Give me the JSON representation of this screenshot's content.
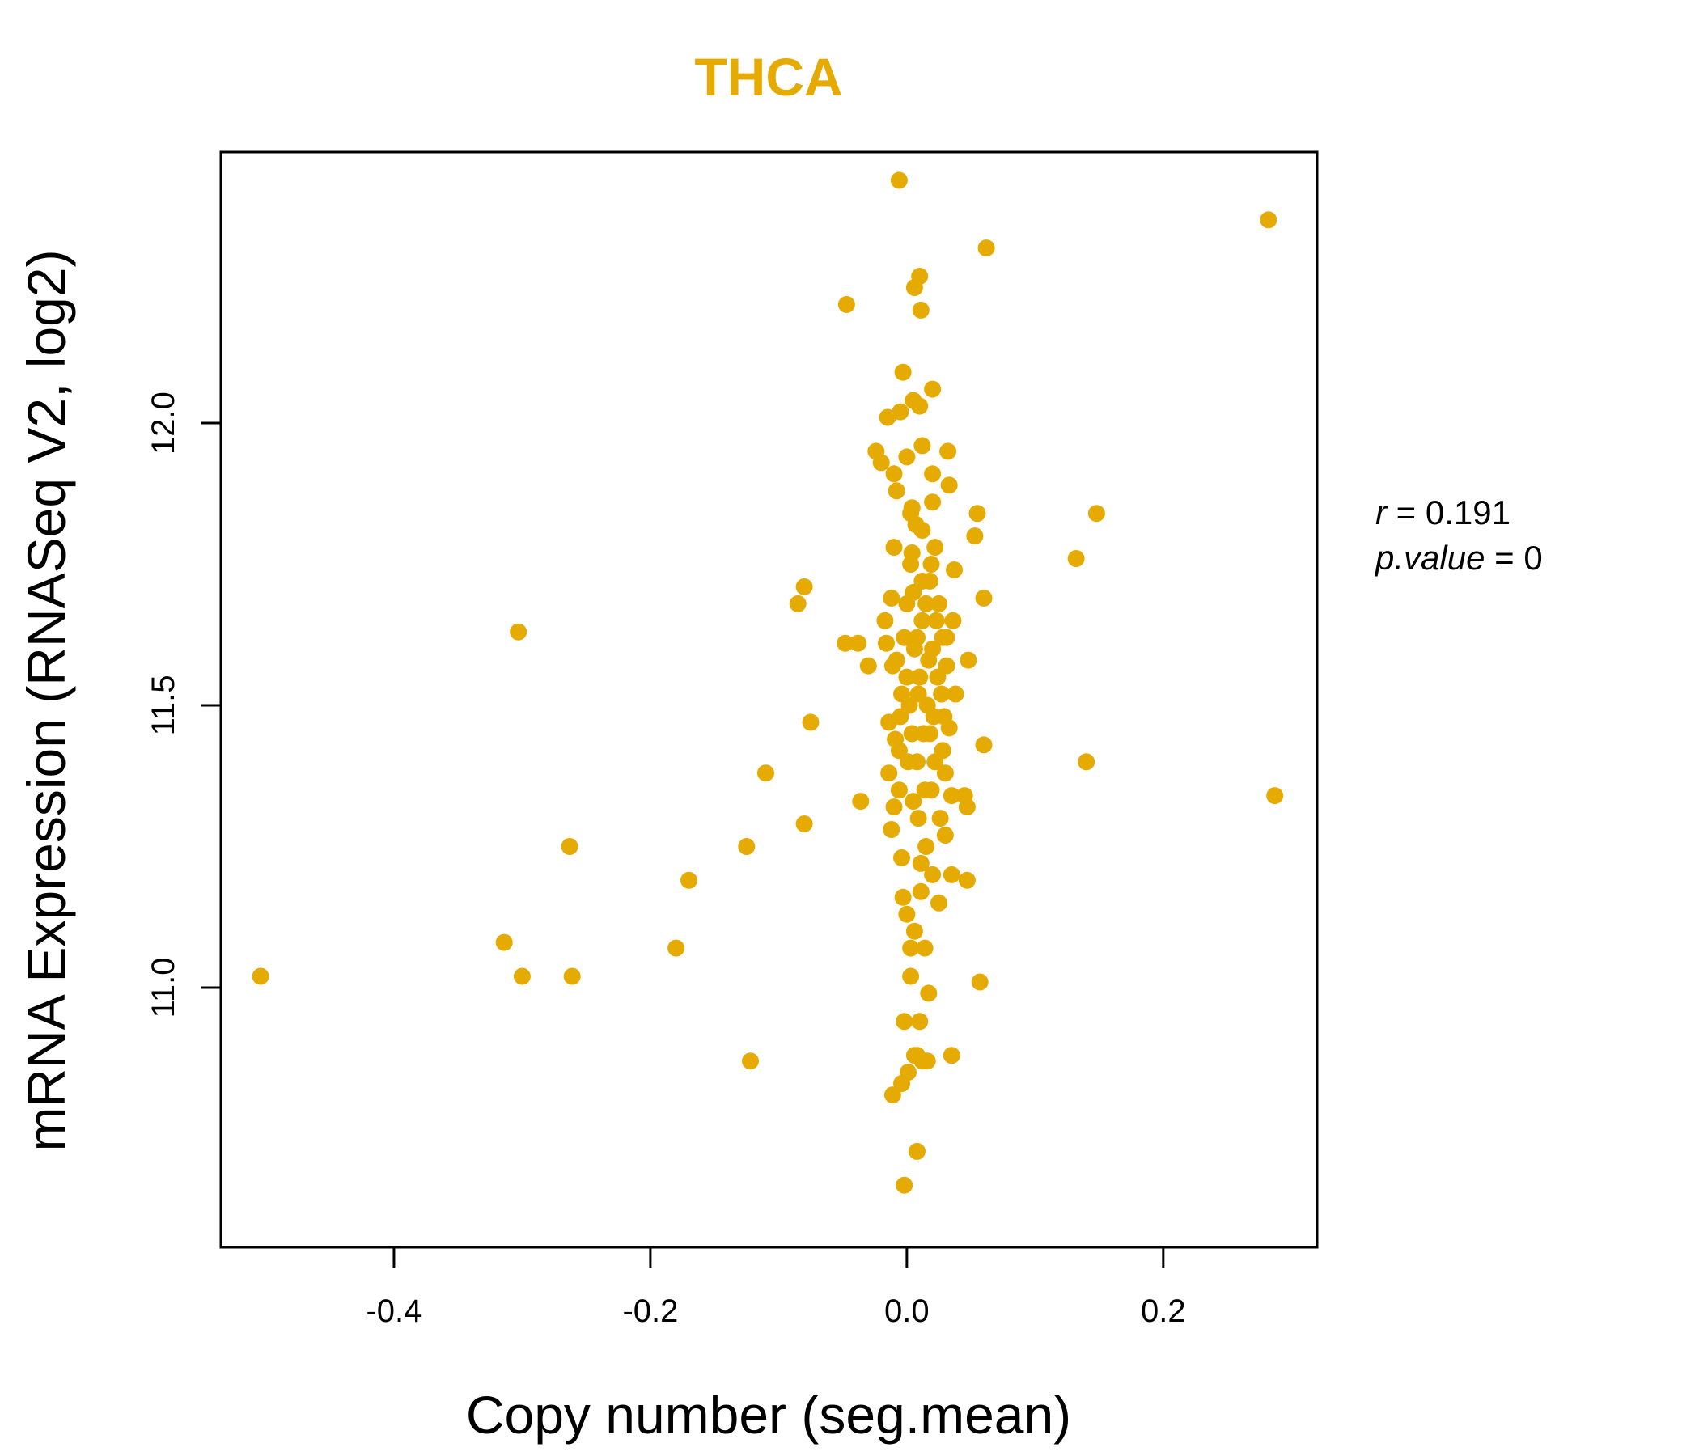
{
  "chart_data": {
    "type": "scatter",
    "title": "THCA",
    "xlabel": "Copy number (seg.mean)",
    "ylabel": "mRNA Expression (RNASeq V2, log2)",
    "xlim": [
      -0.535,
      0.32
    ],
    "ylim": [
      10.54,
      12.48
    ],
    "xticks": [
      -0.4,
      -0.2,
      0.0,
      0.2
    ],
    "xtick_labels": [
      "-0.4",
      "-0.2",
      "0.0",
      "0.2"
    ],
    "yticks": [
      11.0,
      11.5,
      12.0
    ],
    "ytick_labels": [
      "11.0",
      "11.5",
      "12.0"
    ],
    "stats": {
      "r_label": "r",
      "r_value": "0.191",
      "p_label": "p.value",
      "p_value": "0"
    },
    "colors": {
      "accent": "#E6AB02",
      "axis": "#000000"
    },
    "points": [
      [
        -0.504,
        11.02
      ],
      [
        -0.303,
        11.63
      ],
      [
        -0.314,
        11.08
      ],
      [
        -0.3,
        11.02
      ],
      [
        -0.263,
        11.25
      ],
      [
        -0.261,
        11.02
      ],
      [
        -0.18,
        11.07
      ],
      [
        -0.17,
        11.19
      ],
      [
        -0.125,
        11.25
      ],
      [
        -0.122,
        10.87
      ],
      [
        -0.11,
        11.38
      ],
      [
        -0.085,
        11.68
      ],
      [
        -0.08,
        11.71
      ],
      [
        -0.075,
        11.47
      ],
      [
        -0.08,
        11.29
      ],
      [
        -0.048,
        11.61
      ],
      [
        -0.038,
        11.61
      ],
      [
        -0.03,
        11.57
      ],
      [
        -0.036,
        11.33
      ],
      [
        -0.047,
        12.21
      ],
      [
        -0.006,
        12.43
      ],
      [
        0.062,
        12.31
      ],
      [
        0.282,
        12.36
      ],
      [
        0.287,
        11.34
      ],
      [
        0.14,
        11.4
      ],
      [
        0.132,
        11.76
      ],
      [
        0.148,
        11.84
      ],
      [
        0.06,
        11.69
      ],
      [
        0.06,
        11.43
      ],
      [
        0.057,
        11.01
      ],
      [
        0.055,
        11.84
      ],
      [
        0.053,
        11.8
      ],
      [
        0.048,
        11.58
      ],
      [
        0.047,
        11.32
      ],
      [
        0.047,
        11.19
      ],
      [
        0.045,
        11.34
      ],
      [
        0.038,
        11.52
      ],
      [
        0.037,
        11.74
      ],
      [
        0.036,
        11.65
      ],
      [
        0.035,
        11.34
      ],
      [
        0.035,
        11.2
      ],
      [
        0.035,
        10.88
      ],
      [
        0.033,
        11.89
      ],
      [
        0.032,
        11.95
      ],
      [
        0.033,
        11.46
      ],
      [
        0.031,
        11.57
      ],
      [
        0.02,
        12.06
      ],
      [
        0.02,
        11.86
      ],
      [
        0.02,
        11.91
      ],
      [
        0.012,
        11.96
      ],
      [
        0.01,
        12.03
      ],
      [
        0.012,
        11.81
      ],
      [
        0.01,
        12.26
      ],
      [
        0.006,
        12.24
      ],
      [
        0.011,
        12.2
      ],
      [
        -0.003,
        12.09
      ],
      [
        -0.005,
        12.02
      ],
      [
        0.005,
        12.04
      ],
      [
        -0.015,
        12.01
      ],
      [
        -0.02,
        11.93
      ],
      [
        -0.024,
        11.95
      ],
      [
        -0.01,
        11.91
      ],
      [
        -0.008,
        11.88
      ],
      [
        0.003,
        11.84
      ],
      [
        0.0,
        11.94
      ],
      [
        0.012,
        11.72
      ],
      [
        0.004,
        11.77
      ],
      [
        -0.01,
        11.78
      ],
      [
        -0.012,
        11.69
      ],
      [
        -0.017,
        11.65
      ],
      [
        -0.016,
        11.61
      ],
      [
        -0.011,
        11.57
      ],
      [
        -0.014,
        11.47
      ],
      [
        -0.014,
        11.38
      ],
      [
        -0.01,
        11.32
      ],
      [
        -0.012,
        11.28
      ],
      [
        -0.009,
        11.44
      ],
      [
        -0.006,
        11.35
      ],
      [
        -0.004,
        11.23
      ],
      [
        -0.003,
        11.16
      ],
      [
        0.0,
        11.13
      ],
      [
        0.003,
        11.07
      ],
      [
        0.003,
        11.02
      ],
      [
        0.006,
        11.1
      ],
      [
        0.011,
        11.17
      ],
      [
        0.014,
        11.07
      ],
      [
        0.017,
        10.99
      ],
      [
        -0.002,
        10.94
      ],
      [
        0.01,
        10.94
      ],
      [
        0.008,
        10.88
      ],
      [
        0.006,
        10.88
      ],
      [
        0.012,
        10.87
      ],
      [
        0.016,
        10.87
      ],
      [
        0.001,
        10.85
      ],
      [
        -0.004,
        10.83
      ],
      [
        -0.011,
        10.81
      ],
      [
        0.008,
        10.71
      ],
      [
        -0.002,
        10.65
      ],
      [
        0.0,
        11.55
      ],
      [
        0.002,
        11.5
      ],
      [
        0.004,
        11.45
      ],
      [
        0.006,
        11.6
      ],
      [
        0.008,
        11.4
      ],
      [
        0.01,
        11.55
      ],
      [
        0.012,
        11.65
      ],
      [
        0.005,
        11.7
      ],
      [
        0.014,
        11.35
      ],
      [
        0.016,
        11.5
      ],
      [
        0.018,
        11.45
      ],
      [
        0.02,
        11.6
      ],
      [
        0.022,
        11.4
      ],
      [
        0.024,
        11.55
      ],
      [
        0.026,
        11.3
      ],
      [
        0.028,
        11.42
      ],
      [
        0.015,
        11.25
      ],
      [
        0.02,
        11.2
      ],
      [
        0.025,
        11.15
      ],
      [
        0.03,
        11.27
      ],
      [
        0.018,
        11.72
      ],
      [
        0.022,
        11.78
      ],
      [
        0.025,
        11.68
      ],
      [
        0.028,
        11.62
      ],
      [
        0.03,
        11.38
      ],
      [
        -0.002,
        11.62
      ],
      [
        -0.004,
        11.52
      ],
      [
        -0.006,
        11.42
      ],
      [
        -0.008,
        11.58
      ],
      [
        0.0,
        11.68
      ],
      [
        0.003,
        11.75
      ],
      [
        0.007,
        11.82
      ],
      [
        0.009,
        11.3
      ],
      [
        0.011,
        11.22
      ],
      [
        0.013,
        11.45
      ],
      [
        0.017,
        11.58
      ],
      [
        0.019,
        11.35
      ],
      [
        0.021,
        11.48
      ],
      [
        0.023,
        11.65
      ],
      [
        0.027,
        11.52
      ],
      [
        0.029,
        11.48
      ],
      [
        0.031,
        11.62
      ],
      [
        -0.005,
        11.48
      ],
      [
        0.001,
        11.4
      ],
      [
        0.005,
        11.33
      ],
      [
        0.009,
        11.52
      ],
      [
        0.015,
        11.68
      ],
      [
        0.019,
        11.75
      ],
      [
        0.004,
        11.85
      ],
      [
        0.008,
        11.62
      ]
    ]
  }
}
